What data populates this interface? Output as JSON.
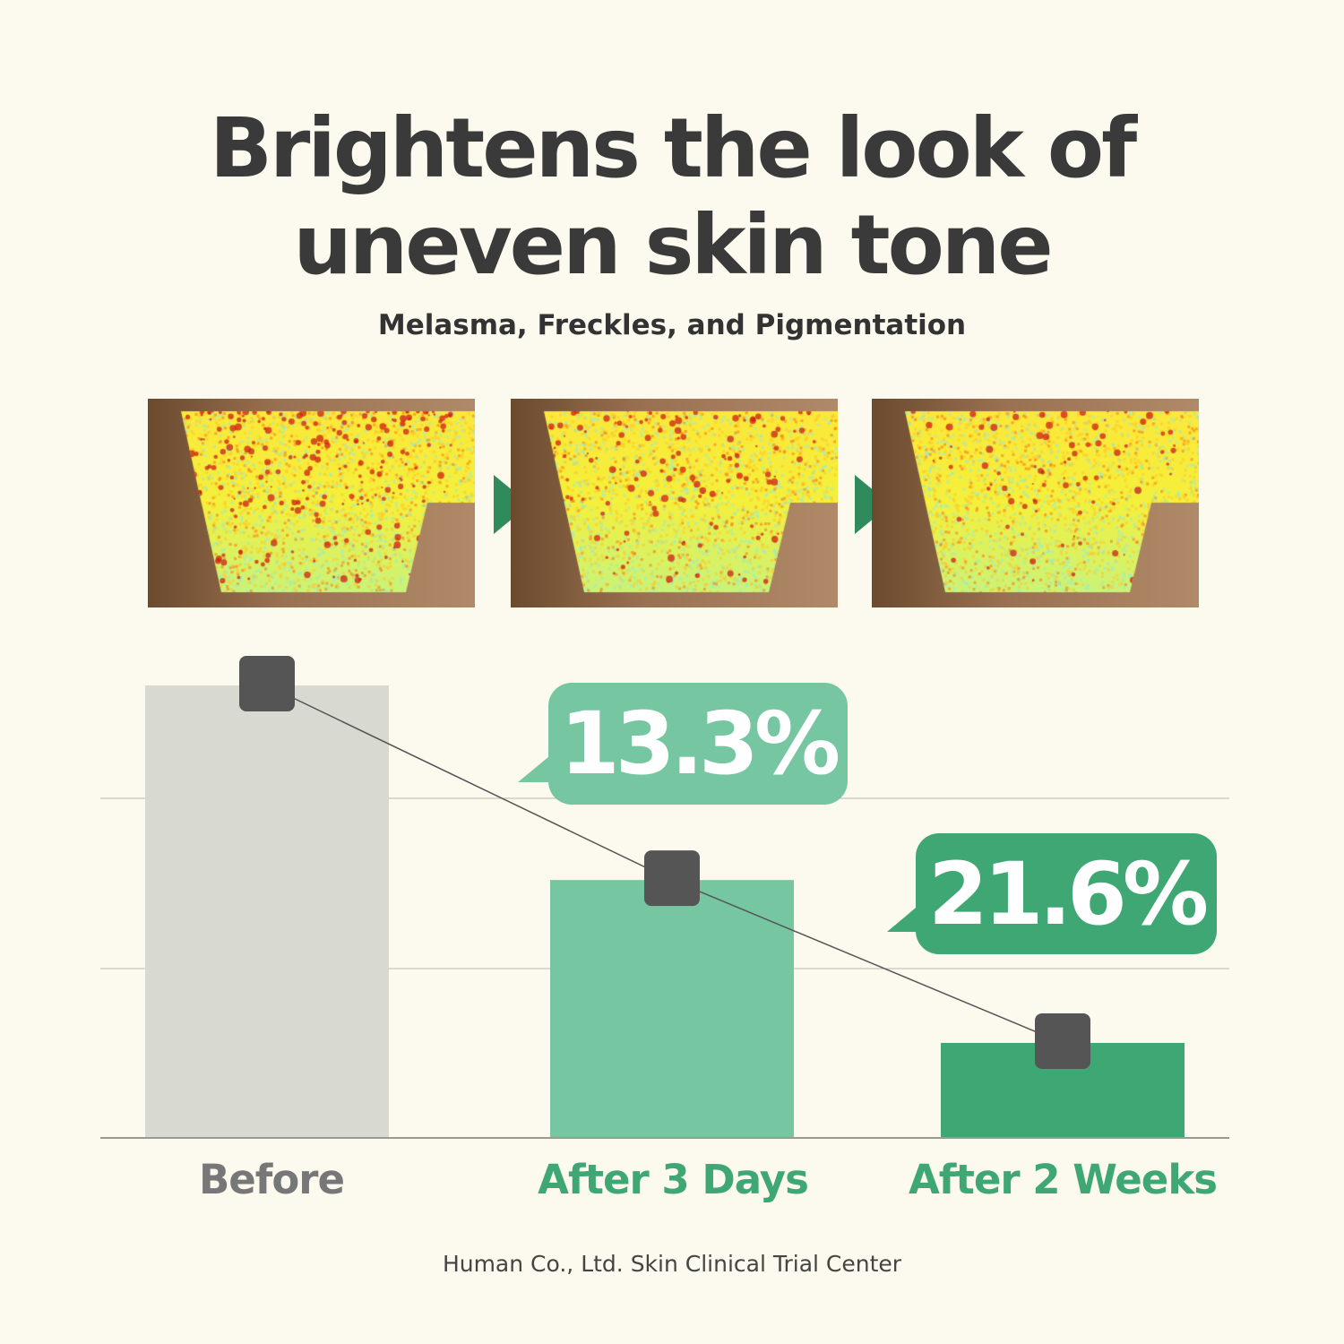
{
  "header": {
    "title_line1": "Brightens the look of",
    "title_line2": "uneven skin tone",
    "subtitle": "Melasma, Freckles, and Pigmentation"
  },
  "chart_data": {
    "type": "bar",
    "categories": [
      "Before",
      "After 3 Days",
      "After 2 Weeks"
    ],
    "values": [
      100,
      57,
      21
    ],
    "callouts": [
      "13.3%",
      "21.6%"
    ],
    "title": "",
    "xlabel": "",
    "ylabel": "",
    "ylim": [
      0,
      100
    ],
    "grid": true,
    "colors": [
      "#d8d9d1",
      "#76c6a2",
      "#3fa774"
    ],
    "label_colors": [
      "#777777",
      "#3fa774",
      "#3fa774"
    ],
    "marker_color": "#555555",
    "callout_colors": [
      "#76c6a2",
      "#3fa774"
    ]
  },
  "footer": "Human Co., Ltd. Skin Clinical Trial Center",
  "colors": {
    "background": "#fcf9ee",
    "arrow": "#2f8a5c",
    "text": "#3a3a3a"
  }
}
